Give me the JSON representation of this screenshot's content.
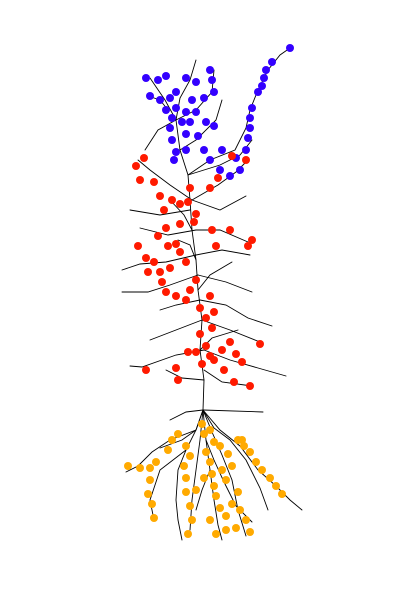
{
  "figure": {
    "background": "#ffffff",
    "branch_color": "#000000",
    "groups": [
      {
        "id": "apical-tuft",
        "color": "#3300ff"
      },
      {
        "id": "apical-oblique",
        "color": "#ff1a00"
      },
      {
        "id": "basal",
        "color": "#ffaa00"
      }
    ]
  }
}
